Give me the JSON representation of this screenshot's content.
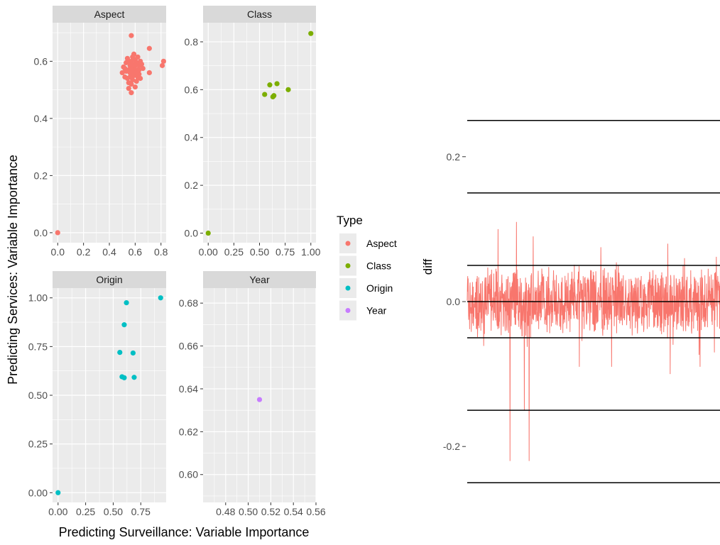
{
  "figure": {
    "xlabel": "Predicting Surveillance: Variable Importance",
    "ylabel": "Predicting Services: Variable Importance"
  },
  "legend": {
    "title": "Type",
    "placement": "right",
    "items": [
      {
        "label": "Aspect",
        "color": "#F8766D"
      },
      {
        "label": "Class",
        "color": "#7CAE00"
      },
      {
        "label": "Origin",
        "color": "#00BFC4"
      },
      {
        "label": "Year",
        "color": "#C77CFF"
      }
    ]
  },
  "chart_data": [
    {
      "type": "scatter",
      "facet": "Aspect",
      "color": "#F8766D",
      "xlim": [
        -0.04,
        0.84
      ],
      "ylim": [
        -0.035,
        0.735
      ],
      "x_ticks": [
        {
          "value": 0.0,
          "label": "0.0"
        },
        {
          "value": 0.2,
          "label": "0.2"
        },
        {
          "value": 0.4,
          "label": "0.4"
        },
        {
          "value": 0.6,
          "label": "0.6"
        },
        {
          "value": 0.8,
          "label": "0.8"
        }
      ],
      "y_ticks": [
        {
          "value": 0.0,
          "label": "0.0"
        },
        {
          "value": 0.2,
          "label": "0.2"
        },
        {
          "value": 0.4,
          "label": "0.4"
        },
        {
          "value": 0.6,
          "label": "0.6"
        }
      ],
      "points": [
        [
          0.0,
          0.0
        ],
        [
          0.57,
          0.69
        ],
        [
          0.71,
          0.645
        ],
        [
          0.82,
          0.6
        ],
        [
          0.81,
          0.585
        ],
        [
          0.71,
          0.56
        ],
        [
          0.57,
          0.49
        ],
        [
          0.58,
          0.615
        ],
        [
          0.55,
          0.6
        ],
        [
          0.6,
          0.605
        ],
        [
          0.52,
          0.575
        ],
        [
          0.62,
          0.57
        ],
        [
          0.56,
          0.56
        ],
        [
          0.59,
          0.55
        ],
        [
          0.63,
          0.585
        ],
        [
          0.54,
          0.54
        ],
        [
          0.61,
          0.53
        ],
        [
          0.57,
          0.52
        ],
        [
          0.53,
          0.595
        ],
        [
          0.64,
          0.6
        ],
        [
          0.58,
          0.58
        ],
        [
          0.6,
          0.57
        ],
        [
          0.55,
          0.525
        ],
        [
          0.62,
          0.545
        ],
        [
          0.5,
          0.56
        ],
        [
          0.66,
          0.575
        ],
        [
          0.57,
          0.6
        ],
        [
          0.59,
          0.625
        ],
        [
          0.54,
          0.61
        ],
        [
          0.61,
          0.595
        ],
        [
          0.56,
          0.585
        ],
        [
          0.63,
          0.555
        ],
        [
          0.52,
          0.545
        ],
        [
          0.58,
          0.535
        ],
        [
          0.6,
          0.51
        ],
        [
          0.55,
          0.505
        ],
        [
          0.65,
          0.59
        ],
        [
          0.59,
          0.565
        ],
        [
          0.53,
          0.565
        ],
        [
          0.62,
          0.615
        ],
        [
          0.57,
          0.575
        ],
        [
          0.61,
          0.56
        ],
        [
          0.56,
          0.545
        ],
        [
          0.64,
          0.54
        ],
        [
          0.51,
          0.58
        ],
        [
          0.58,
          0.59
        ],
        [
          0.6,
          0.585
        ],
        [
          0.55,
          0.57
        ],
        [
          0.63,
          0.57
        ],
        [
          0.57,
          0.555
        ]
      ]
    },
    {
      "type": "scatter",
      "facet": "Class",
      "color": "#7CAE00",
      "xlim": [
        -0.05,
        1.05
      ],
      "ylim": [
        -0.04,
        0.88
      ],
      "x_ticks": [
        {
          "value": 0.0,
          "label": "0.00"
        },
        {
          "value": 0.25,
          "label": "0.25"
        },
        {
          "value": 0.5,
          "label": "0.50"
        },
        {
          "value": 0.75,
          "label": "0.75"
        },
        {
          "value": 1.0,
          "label": "1.00"
        }
      ],
      "y_ticks": [
        {
          "value": 0.0,
          "label": "0.0"
        },
        {
          "value": 0.2,
          "label": "0.2"
        },
        {
          "value": 0.4,
          "label": "0.4"
        },
        {
          "value": 0.6,
          "label": "0.6"
        },
        {
          "value": 0.8,
          "label": "0.8"
        }
      ],
      "points": [
        [
          0.0,
          0.0
        ],
        [
          1.0,
          0.835
        ],
        [
          0.55,
          0.58
        ],
        [
          0.6,
          0.62
        ],
        [
          0.64,
          0.575
        ],
        [
          0.63,
          0.57
        ],
        [
          0.67,
          0.625
        ],
        [
          0.78,
          0.6
        ]
      ]
    },
    {
      "type": "scatter",
      "facet": "Origin",
      "color": "#00BFC4",
      "xlim": [
        -0.05,
        0.98
      ],
      "ylim": [
        -0.05,
        1.05
      ],
      "x_ticks": [
        {
          "value": 0.0,
          "label": "0.00"
        },
        {
          "value": 0.25,
          "label": "0.25"
        },
        {
          "value": 0.5,
          "label": "0.50"
        },
        {
          "value": 0.75,
          "label": "0.75"
        }
      ],
      "y_ticks": [
        {
          "value": 0.0,
          "label": "0.00"
        },
        {
          "value": 0.25,
          "label": "0.25"
        },
        {
          "value": 0.5,
          "label": "0.50"
        },
        {
          "value": 0.75,
          "label": "0.75"
        },
        {
          "value": 1.0,
          "label": "1.00"
        }
      ],
      "points": [
        [
          0.0,
          0.0
        ],
        [
          0.93,
          1.0
        ],
        [
          0.62,
          0.975
        ],
        [
          0.6,
          0.862
        ],
        [
          0.56,
          0.72
        ],
        [
          0.68,
          0.717
        ],
        [
          0.58,
          0.595
        ],
        [
          0.6,
          0.59
        ],
        [
          0.69,
          0.592
        ]
      ]
    },
    {
      "type": "scatter",
      "facet": "Year",
      "color": "#C77CFF",
      "xlim": [
        0.46,
        0.56
      ],
      "ylim": [
        0.587,
        0.687
      ],
      "x_ticks": [
        {
          "value": 0.48,
          "label": "0.48"
        },
        {
          "value": 0.5,
          "label": "0.50"
        },
        {
          "value": 0.52,
          "label": "0.52"
        },
        {
          "value": 0.54,
          "label": "0.54"
        },
        {
          "value": 0.56,
          "label": "0.56"
        }
      ],
      "y_ticks": [
        {
          "value": 0.6,
          "label": "0.60"
        },
        {
          "value": 0.62,
          "label": "0.62"
        },
        {
          "value": 0.64,
          "label": "0.64"
        },
        {
          "value": 0.66,
          "label": "0.66"
        },
        {
          "value": 0.68,
          "label": "0.68"
        }
      ],
      "points": [
        [
          0.51,
          0.635
        ]
      ]
    },
    {
      "type": "line",
      "ylabel": "diff",
      "ylim": [
        -0.275,
        0.275
      ],
      "y_ticks": [
        {
          "value": 0.2,
          "label": "0.2"
        },
        {
          "value": 0.0,
          "label": "0.0"
        },
        {
          "value": -0.2,
          "label": "-0.2"
        }
      ],
      "hlines": [
        0.25,
        0.15,
        0.05,
        0.0,
        -0.05,
        -0.15,
        -0.25
      ],
      "x_span": [
        1,
        1100
      ],
      "series": [
        {
          "color": "#F8766D",
          "x_range": [
            1,
            1070
          ]
        },
        {
          "color": "#7CAE00",
          "x_range": [
            1070,
            1100
          ]
        }
      ],
      "features": {
        "peaks": [
          [
            130,
            0.1
          ],
          [
            207,
            0.11
          ],
          [
            277,
            0.09
          ],
          [
            560,
            0.075
          ],
          [
            840,
            0.08
          ],
          [
            910,
            0.06
          ],
          [
            1060,
            0.07
          ]
        ],
        "dips": [
          [
            180,
            -0.22
          ],
          [
            240,
            -0.15
          ],
          [
            260,
            -0.22
          ],
          [
            470,
            -0.09
          ],
          [
            605,
            -0.09
          ],
          [
            850,
            -0.1
          ],
          [
            975,
            -0.09
          ]
        ]
      }
    }
  ]
}
